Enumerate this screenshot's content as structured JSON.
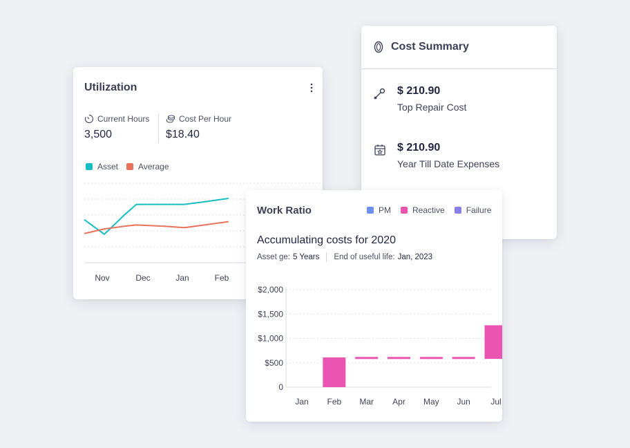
{
  "cost_summary": {
    "title": "Cost Summary",
    "items": [
      {
        "amount": "$ 210.90",
        "label": "Top Repair Cost",
        "icon": "wrench-icon"
      },
      {
        "amount": "$ 210.90",
        "label": "Year Till Date Expenses",
        "icon": "calendar-icon"
      }
    ]
  },
  "utilization": {
    "title": "Utilization",
    "metrics": [
      {
        "label": "Current Hours",
        "value": "3,500",
        "icon": "timer-icon"
      },
      {
        "label": "Cost Per Hour",
        "value": "$18.40",
        "icon": "coins-icon"
      }
    ],
    "legend": [
      {
        "name": "Asset",
        "color": "#16bcc4"
      },
      {
        "name": "Average",
        "color": "#e8735a"
      }
    ],
    "x_labels": [
      "Nov",
      "Dec",
      "Jan",
      "Feb"
    ]
  },
  "work_ratio": {
    "title": "Work Ratio",
    "legend": [
      {
        "name": "PM",
        "color": "#6b8ff0"
      },
      {
        "name": "Reactive",
        "color": "#ea55b1"
      },
      {
        "name": "Failure",
        "color": "#8a7ee8"
      }
    ],
    "subtitle": "Accumulating costs for 2020",
    "asset_age_label": "Asset ge:",
    "asset_age_value": "5 Years",
    "useful_life_label": "End of useful life:",
    "useful_life_value": "Jan, 2023"
  },
  "chart_data": [
    {
      "type": "line",
      "categories": [
        "Nov",
        "Dec",
        "Jan",
        "Feb"
      ],
      "x": [
        0,
        0.5,
        1,
        1.3,
        2,
        2.5,
        3,
        3.6
      ],
      "series": [
        {
          "name": "Asset",
          "color": "#16bcc4",
          "values": [
            65,
            43,
            72,
            88,
            88,
            88,
            92,
            97
          ]
        },
        {
          "name": "Average",
          "color": "#e8735a",
          "values": [
            44,
            51,
            55,
            57,
            55,
            53,
            57,
            62
          ]
        }
      ],
      "ylim": [
        0,
        120
      ],
      "grid": true
    },
    {
      "type": "bar",
      "categories": [
        "Jan",
        "Feb",
        "Mar",
        "Apr",
        "May",
        "Jun",
        "Jul"
      ],
      "series": [
        {
          "name": "Reactive",
          "color": "#ea55b1",
          "base": [
            0,
            0,
            600,
            600,
            600,
            600,
            580
          ],
          "values": [
            0,
            610,
            620,
            620,
            620,
            620,
            1270
          ]
        }
      ],
      "yticks": [
        "$2,000",
        "$1,500",
        "$1,000",
        "$500",
        "0"
      ],
      "ylim": [
        0,
        2000
      ],
      "grid": true
    }
  ]
}
